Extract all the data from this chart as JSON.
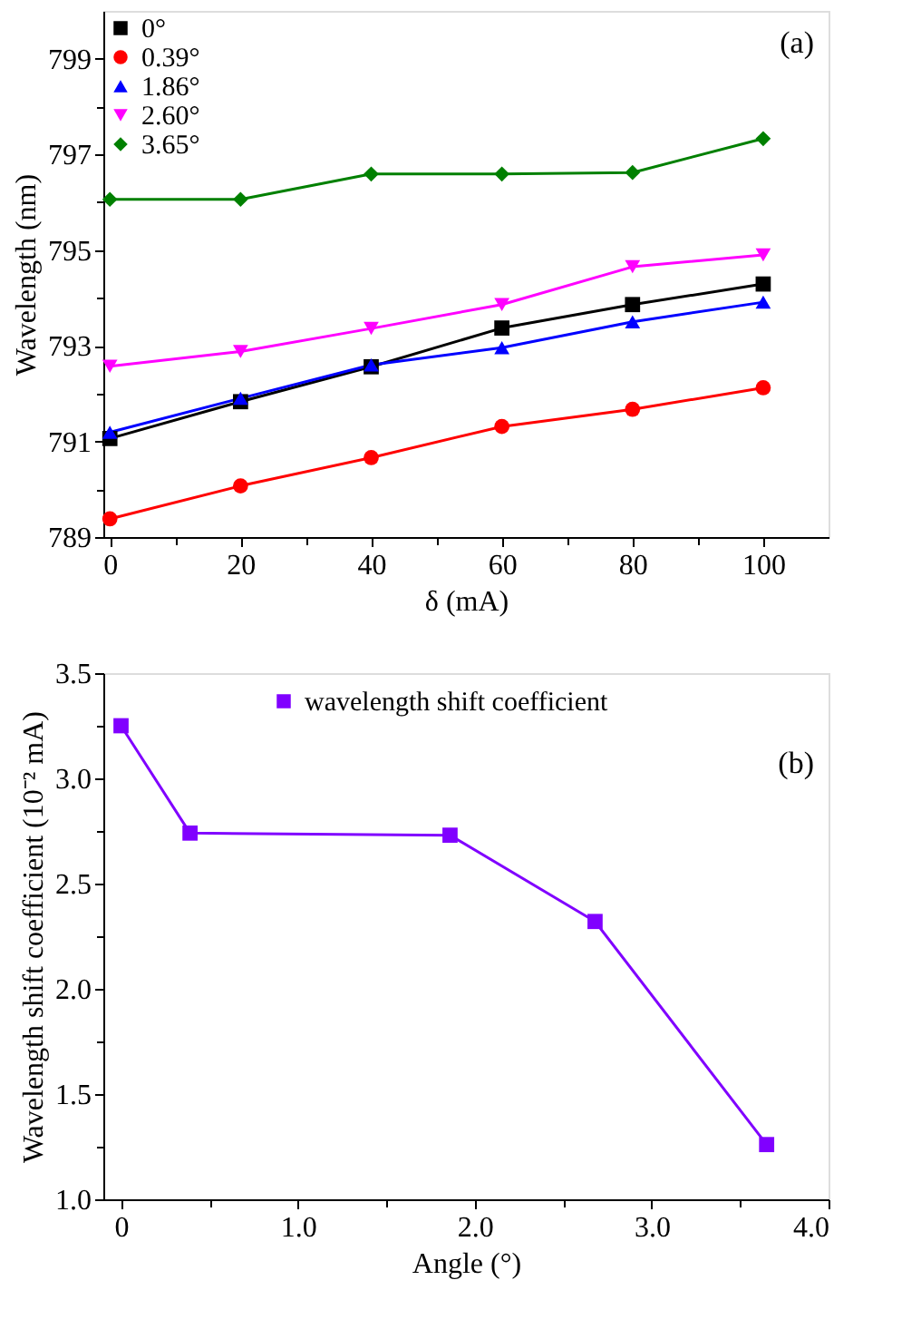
{
  "chart_data": [
    {
      "type": "line",
      "xlabel": "δ (mA)",
      "ylabel": "Wavelength (nm)",
      "annotations": [
        "(a)"
      ],
      "x": [
        0,
        20,
        40,
        60,
        80,
        100
      ],
      "series": [
        {
          "name": "0°",
          "color": "#000000",
          "marker": "square",
          "values": [
            791.06,
            791.83,
            792.56,
            793.37,
            793.86,
            794.29
          ]
        },
        {
          "name": "0.39°",
          "color": "#ff0000",
          "marker": "circle",
          "values": [
            789.38,
            790.07,
            790.66,
            791.31,
            791.67,
            792.12
          ]
        },
        {
          "name": "1.86°",
          "color": "#0000ff",
          "marker": "triangle",
          "values": [
            791.19,
            791.9,
            792.6,
            792.96,
            793.5,
            793.91
          ]
        },
        {
          "name": "2.60°",
          "color": "#ff00ff",
          "marker": "triangle-down",
          "values": [
            792.57,
            792.88,
            793.36,
            793.86,
            794.65,
            794.9
          ]
        },
        {
          "name": "3.65°",
          "color": "#008000",
          "marker": "diamond",
          "values": [
            796.06,
            796.06,
            796.59,
            796.59,
            796.62,
            797.33
          ]
        }
      ],
      "xlim": [
        -1,
        110
      ],
      "ylim": [
        789,
        800
      ],
      "xticks": [
        0,
        {
          "value": 10,
          "label": null
        },
        20,
        {
          "value": 30,
          "label": null
        },
        40,
        {
          "value": 50,
          "label": null
        },
        60,
        {
          "value": 70,
          "label": null
        },
        80,
        {
          "value": 90,
          "label": null
        },
        100
      ],
      "yticks": [
        789,
        {
          "value": 790,
          "label": null
        },
        791,
        {
          "value": 792,
          "label": null
        },
        793,
        {
          "value": 794,
          "label": null
        },
        795,
        {
          "value": 796,
          "label": null
        },
        797,
        {
          "value": 798,
          "label": null
        },
        799
      ],
      "legend": "top left",
      "grid": false
    },
    {
      "type": "line",
      "xlabel": "Angle (°)",
      "ylabel": "Wavelength shift coefficient (10⁻² mA)",
      "annotations": [
        "(b)"
      ],
      "series": [
        {
          "name": "wavelength shift coefficient",
          "color": "#8000ff",
          "marker": "square",
          "x": [
            0,
            0.39,
            1.86,
            2.68,
            3.65
          ],
          "values": [
            3.25,
            2.74,
            2.73,
            2.32,
            1.26
          ]
        }
      ],
      "xlim": [
        -0.1,
        4.0
      ],
      "ylim": [
        1.0,
        3.5
      ],
      "xticks": [
        0,
        {
          "value": 0.5,
          "label": null
        },
        {
          "value": 1,
          "label": "1.0"
        },
        {
          "value": 1.5,
          "label": null
        },
        {
          "value": 2,
          "label": "2.0"
        },
        {
          "value": 2.5,
          "label": null
        },
        {
          "value": 3,
          "label": "3.0"
        },
        {
          "value": 3.5,
          "label": null
        },
        {
          "value": 4,
          "label": "4.0"
        }
      ],
      "yticks": [
        {
          "value": 1,
          "label": "1.0"
        },
        {
          "value": 1.25,
          "label": null
        },
        {
          "value": 1.5,
          "label": "1.5"
        },
        {
          "value": 1.75,
          "label": null
        },
        {
          "value": 2,
          "label": "2.0"
        },
        {
          "value": 2.25,
          "label": null
        },
        {
          "value": 2.5,
          "label": "2.5"
        },
        {
          "value": 2.75,
          "label": null
        },
        {
          "value": 3,
          "label": "3.0"
        },
        {
          "value": 3.25,
          "label": null
        },
        {
          "value": 3.5,
          "label": "3.5"
        }
      ],
      "legend": "top",
      "grid": false
    }
  ]
}
